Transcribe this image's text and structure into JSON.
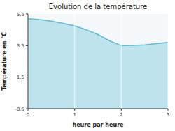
{
  "chart_data": {
    "type": "area",
    "title": "Evolution de la température",
    "x_label": "heure par heure",
    "y_label": "Température en °C",
    "x": [
      0,
      0.25,
      0.5,
      0.75,
      1.0,
      1.25,
      1.5,
      1.75,
      2.0,
      2.25,
      2.5,
      2.75,
      3.0
    ],
    "values": [
      5.2,
      5.15,
      5.05,
      4.9,
      4.75,
      4.5,
      4.2,
      3.8,
      3.5,
      3.52,
      3.55,
      3.62,
      3.7
    ],
    "color": "#5bbdd4",
    "xlim": [
      0,
      3
    ],
    "ylim": [
      -0.5,
      5.5
    ],
    "xticks": [
      0,
      1,
      2,
      3
    ],
    "yticks": [
      -0.5,
      1.5,
      3.5,
      5.5
    ],
    "grid": "x"
  }
}
